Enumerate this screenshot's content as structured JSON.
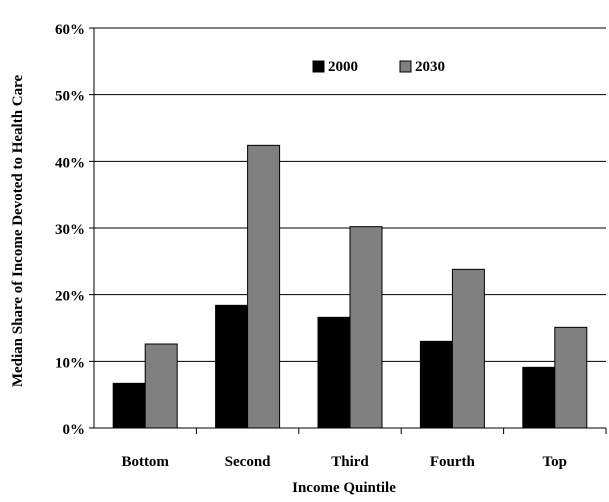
{
  "chart_data": {
    "type": "bar",
    "categories": [
      "Bottom",
      "Second",
      "Third",
      "Fourth",
      "Top"
    ],
    "series": [
      {
        "name": "2000",
        "values": [
          6.7,
          18.4,
          16.6,
          13.0,
          9.1
        ],
        "color": "#000000"
      },
      {
        "name": "2030",
        "values": [
          12.6,
          42.4,
          30.2,
          23.8,
          15.1
        ],
        "color": "#808080"
      }
    ],
    "xlabel": "Income Quintile",
    "ylabel": "Median Share of Income Devoted to Health Care",
    "ylim": [
      0,
      60
    ],
    "yticks": [
      "0%",
      "10%",
      "20%",
      "30%",
      "40%",
      "50%",
      "60%"
    ],
    "grid": true,
    "legend_position": "top-center"
  }
}
